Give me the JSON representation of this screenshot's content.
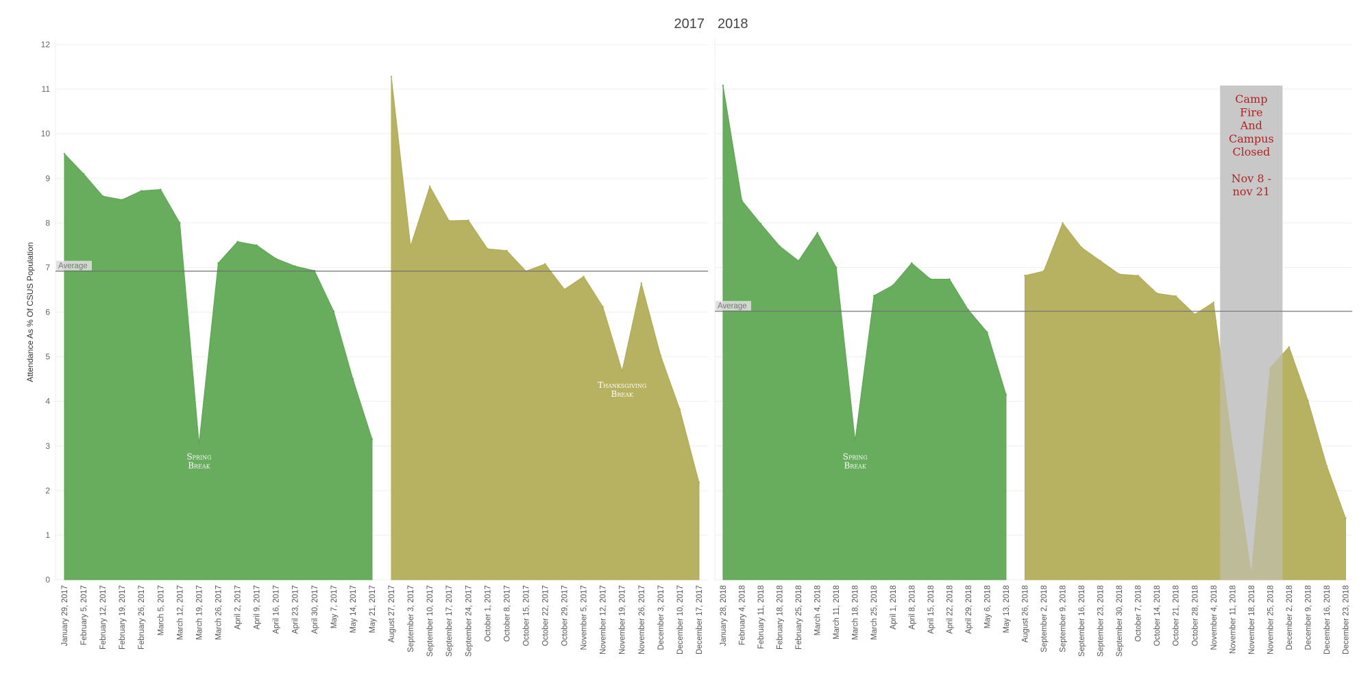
{
  "chart_data": {
    "type": "area",
    "ylabel": "Attendance As % Of CSUS Population",
    "yticks": [
      0,
      1,
      2,
      3,
      4,
      5,
      6,
      7,
      8,
      9,
      10,
      11,
      12
    ],
    "ylim": [
      0,
      12
    ],
    "grid": true,
    "colors": {
      "spring": "#5aa64f",
      "fall": "#b0ab55",
      "closure": "#c8c8c8",
      "closure_text": "#b22222",
      "avg_line": "#707070"
    },
    "panels": [
      {
        "title": "2017",
        "average_label": "Average",
        "average_value": 6.92,
        "series": [
          {
            "term": "spring",
            "x": [
              "January 29, 2017",
              "February 5, 2017",
              "February 12, 2017",
              "February 19, 2017",
              "February 26, 2017",
              "March 5, 2017",
              "March 12, 2017",
              "March 19, 2017",
              "March 26, 2017",
              "April 2, 2017",
              "April 9, 2017",
              "April 16, 2017",
              "April 23, 2017",
              "April 30, 2017",
              "May 7, 2017",
              "May 14, 2017",
              "May 21, 2017"
            ],
            "y": [
              9.55,
              9.1,
              8.6,
              8.52,
              8.72,
              8.75,
              8.0,
              3.05,
              7.1,
              7.58,
              7.5,
              7.2,
              7.03,
              6.93,
              6.02,
              4.5,
              3.15
            ]
          },
          {
            "term": "fall",
            "x": [
              "August 27, 2017",
              "September 3, 2017",
              "September 10, 2017",
              "September 17, 2017",
              "September 24, 2017",
              "October 1, 2017",
              "October 8, 2017",
              "October 15, 2017",
              "October 22, 2017",
              "October 29, 2017",
              "November 5, 2017",
              "November 12, 2017",
              "November 19, 2017",
              "November 26, 2017",
              "December 3, 2017",
              "December 10, 2017",
              "December 17, 2017"
            ],
            "y": [
              11.28,
              7.48,
              8.82,
              8.05,
              8.06,
              7.42,
              7.38,
              6.92,
              7.08,
              6.51,
              6.8,
              6.12,
              4.68,
              6.65,
              5.03,
              3.82,
              2.18
            ]
          }
        ],
        "annotations": [
          {
            "lines": [
              "Spring",
              "Break"
            ],
            "x": "March 19, 2017",
            "y": 2.7
          },
          {
            "lines": [
              "Thanksgiving",
              "Break"
            ],
            "x": "November 19, 2017",
            "y": 4.3
          }
        ]
      },
      {
        "title": "2018",
        "average_label": "Average",
        "average_value": 6.02,
        "series": [
          {
            "term": "spring",
            "x": [
              "January 28, 2018",
              "February 4, 2018",
              "February 11, 2018",
              "February 18, 2018",
              "February 25, 2018",
              "March 4, 2018",
              "March 11, 2018",
              "March 18, 2018",
              "March 25, 2018",
              "April 1, 2018",
              "April 8, 2018",
              "April 15, 2018",
              "April 22, 2018",
              "April 29, 2018",
              "May 6, 2018",
              "May 13, 2018"
            ],
            "y": [
              11.08,
              8.5,
              7.98,
              7.48,
              7.15,
              7.78,
              7.0,
              3.12,
              6.37,
              6.6,
              7.1,
              6.74,
              6.74,
              6.05,
              5.55,
              4.15
            ]
          },
          {
            "term": "fall",
            "x": [
              "August 26, 2018",
              "September 2, 2018",
              "September 9, 2018",
              "September 16, 2018",
              "September 23, 2018",
              "September 30, 2018",
              "October 7, 2018",
              "October 14, 2018",
              "October 21, 2018",
              "October 28, 2018",
              "November 4, 2018",
              "November 11, 2018",
              "November 18, 2018",
              "November 25, 2018",
              "December 2, 2018",
              "December 9, 2018",
              "December 16, 2018",
              "December 23, 2018"
            ],
            "y": [
              6.82,
              6.92,
              8.0,
              7.45,
              7.15,
              6.85,
              6.82,
              6.42,
              6.36,
              5.95,
              6.22,
              3.0,
              0.12,
              4.75,
              5.22,
              4.02,
              2.55,
              1.38
            ]
          }
        ],
        "annotations": [
          {
            "lines": [
              "Spring",
              "Break"
            ],
            "x": "March 18, 2018",
            "y": 2.7
          }
        ],
        "closure": {
          "from": "November 11, 2018",
          "to": "November 25, 2018",
          "lines": [
            "Camp",
            "Fire",
            "And",
            "Campus",
            "Closed",
            "",
            "Nov 8 -",
            "nov 21"
          ]
        }
      }
    ]
  }
}
